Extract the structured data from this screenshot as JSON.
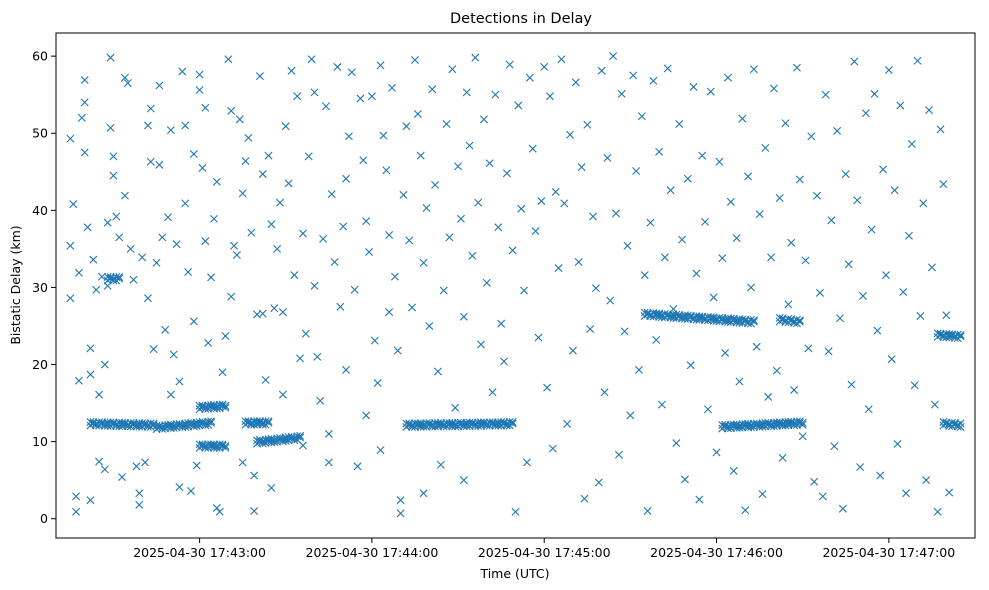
{
  "chart_data": {
    "type": "scatter",
    "title": "Detections in Delay",
    "xlabel": "Time (UTC)",
    "ylabel": "Bistatic Delay (km)",
    "x_unit": "UTC time (HH:MM:SS on 2025-04-30)",
    "xlim": [
      "2025-04-30 17:42:10",
      "2025-04-30 17:47:30"
    ],
    "ylim": [
      -2.5,
      63
    ],
    "x_ticks": [
      {
        "label": "2025-04-30 17:43:00",
        "value": "17:43:00"
      },
      {
        "label": "2025-04-30 17:44:00",
        "value": "17:44:00"
      },
      {
        "label": "2025-04-30 17:45:00",
        "value": "17:45:00"
      },
      {
        "label": "2025-04-30 17:46:00",
        "value": "17:46:00"
      },
      {
        "label": "2025-04-30 17:47:00",
        "value": "17:47:00"
      }
    ],
    "y_ticks": [
      0,
      10,
      20,
      30,
      40,
      50,
      60
    ],
    "marker": "x",
    "color": "#1f77b4",
    "grid": false,
    "legend": "none",
    "tracks": [
      {
        "x_start": "17:42:22",
        "x_end": "17:42:44",
        "y_start": 12.3,
        "y_end": 12.1
      },
      {
        "x_start": "17:42:45",
        "x_end": "17:43:04",
        "y_start": 11.8,
        "y_end": 12.4
      },
      {
        "x_start": "17:43:00",
        "x_end": "17:43:09",
        "y_start": 14.4,
        "y_end": 14.6
      },
      {
        "x_start": "17:43:00",
        "x_end": "17:43:09",
        "y_start": 9.4,
        "y_end": 9.4
      },
      {
        "x_start": "17:43:16",
        "x_end": "17:43:24",
        "y_start": 12.4,
        "y_end": 12.4
      },
      {
        "x_start": "17:43:20",
        "x_end": "17:43:35",
        "y_start": 9.9,
        "y_end": 10.5
      },
      {
        "x_start": "17:44:12",
        "x_end": "17:44:49",
        "y_start": 12.1,
        "y_end": 12.3
      },
      {
        "x_start": "17:45:35",
        "x_end": "17:46:13",
        "y_start": 26.5,
        "y_end": 25.5
      },
      {
        "x_start": "17:46:02",
        "x_end": "17:46:30",
        "y_start": 11.9,
        "y_end": 12.4
      },
      {
        "x_start": "17:47:19",
        "x_end": "17:47:25",
        "y_start": 12.3,
        "y_end": 12.1
      },
      {
        "x_start": "17:42:28",
        "x_end": "17:42:32",
        "y_start": 31.1,
        "y_end": 31.1
      },
      {
        "x_start": "17:46:22",
        "x_end": "17:46:29",
        "y_start": 25.8,
        "y_end": 25.5
      },
      {
        "x_start": "17:47:17",
        "x_end": "17:47:25",
        "y_start": 23.8,
        "y_end": 23.6
      }
    ],
    "scatter": [
      [
        "17:42:15",
        49.3
      ],
      [
        "17:42:15",
        35.4
      ],
      [
        "17:42:15",
        28.6
      ],
      [
        "17:42:16",
        40.8
      ],
      [
        "17:42:17",
        2.9
      ],
      [
        "17:42:17",
        0.9
      ],
      [
        "17:42:18",
        31.9
      ],
      [
        "17:42:18",
        17.9
      ],
      [
        "17:42:19",
        52.0
      ],
      [
        "17:42:20",
        56.9
      ],
      [
        "17:42:20",
        54.0
      ],
      [
        "17:42:20",
        47.5
      ],
      [
        "17:42:21",
        37.8
      ],
      [
        "17:42:22",
        22.1
      ],
      [
        "17:42:22",
        18.7
      ],
      [
        "17:42:22",
        2.4
      ],
      [
        "17:42:23",
        33.6
      ],
      [
        "17:42:24",
        29.7
      ],
      [
        "17:42:25",
        16.1
      ],
      [
        "17:42:25",
        7.4
      ],
      [
        "17:42:26",
        31.4
      ],
      [
        "17:42:27",
        20.0
      ],
      [
        "17:42:27",
        6.4
      ],
      [
        "17:42:28",
        30.2
      ],
      [
        "17:42:28",
        38.4
      ],
      [
        "17:42:29",
        59.8
      ],
      [
        "17:42:29",
        50.7
      ],
      [
        "17:42:30",
        44.5
      ],
      [
        "17:42:30",
        47.0
      ],
      [
        "17:42:31",
        39.2
      ],
      [
        "17:42:32",
        36.5
      ],
      [
        "17:42:33",
        5.4
      ],
      [
        "17:42:34",
        41.9
      ],
      [
        "17:42:34",
        57.2
      ],
      [
        "17:42:35",
        56.5
      ],
      [
        "17:42:36",
        35.0
      ],
      [
        "17:42:37",
        31.0
      ],
      [
        "17:42:38",
        6.8
      ],
      [
        "17:42:39",
        3.3
      ],
      [
        "17:42:39",
        1.8
      ],
      [
        "17:42:40",
        33.9
      ],
      [
        "17:42:41",
        7.3
      ],
      [
        "17:42:42",
        28.6
      ],
      [
        "17:42:42",
        51.0
      ],
      [
        "17:42:43",
        53.2
      ],
      [
        "17:42:43",
        46.3
      ],
      [
        "17:42:44",
        22.0
      ],
      [
        "17:42:45",
        33.2
      ],
      [
        "17:42:46",
        45.9
      ],
      [
        "17:42:46",
        56.2
      ],
      [
        "17:42:47",
        36.5
      ],
      [
        "17:42:48",
        24.5
      ],
      [
        "17:42:49",
        39.1
      ],
      [
        "17:42:50",
        50.4
      ],
      [
        "17:42:50",
        16.1
      ],
      [
        "17:42:51",
        21.3
      ],
      [
        "17:42:52",
        35.6
      ],
      [
        "17:42:53",
        17.8
      ],
      [
        "17:42:53",
        4.1
      ],
      [
        "17:42:54",
        58.0
      ],
      [
        "17:42:55",
        51.0
      ],
      [
        "17:42:55",
        40.9
      ],
      [
        "17:42:56",
        32.0
      ],
      [
        "17:42:57",
        3.6
      ],
      [
        "17:42:58",
        47.3
      ],
      [
        "17:42:58",
        25.6
      ],
      [
        "17:42:59",
        6.9
      ],
      [
        "17:43:00",
        55.6
      ],
      [
        "17:43:00",
        57.6
      ],
      [
        "17:43:01",
        45.5
      ],
      [
        "17:43:02",
        53.3
      ],
      [
        "17:43:02",
        36.0
      ],
      [
        "17:43:03",
        22.8
      ],
      [
        "17:43:04",
        31.3
      ],
      [
        "17:43:05",
        38.9
      ],
      [
        "17:43:06",
        43.7
      ],
      [
        "17:43:06",
        1.4
      ],
      [
        "17:43:07",
        0.9
      ],
      [
        "17:43:08",
        19.0
      ],
      [
        "17:43:09",
        23.7
      ],
      [
        "17:43:10",
        59.6
      ],
      [
        "17:43:11",
        52.9
      ],
      [
        "17:43:11",
        28.8
      ],
      [
        "17:43:12",
        35.4
      ],
      [
        "17:43:13",
        34.2
      ],
      [
        "17:43:14",
        51.8
      ],
      [
        "17:43:15",
        42.2
      ],
      [
        "17:43:15",
        7.3
      ],
      [
        "17:43:16",
        46.4
      ],
      [
        "17:43:17",
        49.4
      ],
      [
        "17:43:18",
        37.1
      ],
      [
        "17:43:19",
        5.6
      ],
      [
        "17:43:19",
        1.0
      ],
      [
        "17:43:20",
        26.5
      ],
      [
        "17:43:21",
        57.4
      ],
      [
        "17:43:22",
        44.7
      ],
      [
        "17:43:22",
        26.6
      ],
      [
        "17:43:23",
        18.0
      ],
      [
        "17:43:24",
        47.1
      ],
      [
        "17:43:25",
        38.2
      ],
      [
        "17:43:25",
        4.0
      ],
      [
        "17:43:26",
        27.3
      ],
      [
        "17:43:27",
        35.0
      ],
      [
        "17:43:28",
        41.0
      ],
      [
        "17:43:29",
        26.8
      ],
      [
        "17:43:29",
        16.1
      ],
      [
        "17:43:30",
        50.9
      ],
      [
        "17:43:31",
        43.5
      ],
      [
        "17:43:32",
        58.1
      ],
      [
        "17:43:33",
        31.6
      ],
      [
        "17:43:34",
        54.8
      ],
      [
        "17:43:35",
        20.8
      ],
      [
        "17:43:36",
        37.0
      ],
      [
        "17:43:36",
        9.5
      ],
      [
        "17:43:37",
        24.0
      ],
      [
        "17:43:38",
        47.0
      ],
      [
        "17:43:39",
        59.6
      ],
      [
        "17:43:40",
        55.3
      ],
      [
        "17:43:40",
        30.2
      ],
      [
        "17:43:41",
        21.0
      ],
      [
        "17:43:42",
        15.3
      ],
      [
        "17:43:43",
        36.3
      ],
      [
        "17:43:44",
        53.5
      ],
      [
        "17:43:45",
        11.0
      ],
      [
        "17:43:45",
        7.3
      ],
      [
        "17:43:46",
        42.1
      ],
      [
        "17:43:47",
        33.3
      ],
      [
        "17:43:48",
        58.6
      ],
      [
        "17:43:49",
        27.5
      ],
      [
        "17:43:50",
        37.9
      ],
      [
        "17:43:51",
        44.1
      ],
      [
        "17:43:51",
        19.3
      ],
      [
        "17:43:52",
        49.6
      ],
      [
        "17:43:53",
        57.9
      ],
      [
        "17:43:54",
        29.7
      ],
      [
        "17:43:55",
        6.8
      ],
      [
        "17:43:56",
        54.5
      ],
      [
        "17:43:57",
        46.5
      ],
      [
        "17:43:58",
        38.6
      ],
      [
        "17:43:58",
        13.4
      ],
      [
        "17:43:59",
        34.6
      ],
      [
        "17:44:00",
        54.8
      ],
      [
        "17:44:01",
        23.1
      ],
      [
        "17:44:02",
        17.6
      ],
      [
        "17:44:03",
        8.9
      ],
      [
        "17:44:03",
        58.8
      ],
      [
        "17:44:04",
        49.7
      ],
      [
        "17:44:05",
        45.2
      ],
      [
        "17:44:06",
        36.8
      ],
      [
        "17:44:06",
        26.8
      ],
      [
        "17:44:07",
        55.9
      ],
      [
        "17:44:08",
        31.4
      ],
      [
        "17:44:09",
        21.8
      ],
      [
        "17:44:10",
        0.7
      ],
      [
        "17:44:10",
        2.4
      ],
      [
        "17:44:11",
        42.0
      ],
      [
        "17:44:12",
        50.9
      ],
      [
        "17:44:13",
        36.1
      ],
      [
        "17:44:14",
        27.4
      ],
      [
        "17:44:15",
        59.5
      ],
      [
        "17:44:16",
        52.5
      ],
      [
        "17:44:17",
        47.1
      ],
      [
        "17:44:18",
        33.2
      ],
      [
        "17:44:18",
        3.3
      ],
      [
        "17:44:19",
        40.3
      ],
      [
        "17:44:20",
        25.0
      ],
      [
        "17:44:21",
        55.7
      ],
      [
        "17:44:22",
        43.3
      ],
      [
        "17:44:23",
        19.1
      ],
      [
        "17:44:24",
        7.0
      ],
      [
        "17:44:25",
        29.6
      ],
      [
        "17:44:26",
        51.2
      ],
      [
        "17:44:27",
        36.5
      ],
      [
        "17:44:28",
        58.3
      ],
      [
        "17:44:29",
        14.4
      ],
      [
        "17:44:30",
        45.7
      ],
      [
        "17:44:31",
        38.9
      ],
      [
        "17:44:32",
        26.2
      ],
      [
        "17:44:32",
        5.0
      ],
      [
        "17:44:33",
        55.3
      ],
      [
        "17:44:34",
        48.4
      ],
      [
        "17:44:35",
        34.1
      ],
      [
        "17:44:36",
        59.8
      ],
      [
        "17:44:37",
        41.0
      ],
      [
        "17:44:38",
        22.6
      ],
      [
        "17:44:39",
        51.8
      ],
      [
        "17:44:40",
        30.6
      ],
      [
        "17:44:41",
        46.1
      ],
      [
        "17:44:42",
        16.4
      ],
      [
        "17:44:43",
        55.0
      ],
      [
        "17:44:44",
        37.8
      ],
      [
        "17:44:45",
        25.3
      ],
      [
        "17:44:46",
        20.4
      ],
      [
        "17:44:47",
        44.8
      ],
      [
        "17:44:48",
        58.9
      ],
      [
        "17:44:49",
        34.8
      ],
      [
        "17:44:50",
        0.9
      ],
      [
        "17:44:51",
        53.6
      ],
      [
        "17:44:52",
        40.2
      ],
      [
        "17:44:53",
        29.6
      ],
      [
        "17:44:54",
        7.3
      ],
      [
        "17:44:55",
        57.2
      ],
      [
        "17:44:56",
        48.0
      ],
      [
        "17:44:57",
        37.3
      ],
      [
        "17:44:58",
        23.5
      ],
      [
        "17:44:59",
        41.2
      ],
      [
        "17:45:00",
        58.6
      ],
      [
        "17:45:01",
        17.0
      ],
      [
        "17:45:02",
        54.8
      ],
      [
        "17:45:03",
        9.1
      ],
      [
        "17:45:04",
        42.4
      ],
      [
        "17:45:05",
        32.5
      ],
      [
        "17:45:06",
        59.6
      ],
      [
        "17:45:07",
        40.9
      ],
      [
        "17:45:08",
        12.3
      ],
      [
        "17:45:09",
        49.8
      ],
      [
        "17:45:10",
        21.8
      ],
      [
        "17:45:11",
        56.6
      ],
      [
        "17:45:12",
        33.3
      ],
      [
        "17:45:13",
        45.6
      ],
      [
        "17:45:14",
        2.6
      ],
      [
        "17:45:15",
        51.1
      ],
      [
        "17:45:16",
        24.6
      ],
      [
        "17:45:17",
        39.2
      ],
      [
        "17:45:18",
        29.9
      ],
      [
        "17:45:19",
        4.7
      ],
      [
        "17:45:20",
        58.1
      ],
      [
        "17:45:21",
        16.4
      ],
      [
        "17:45:22",
        46.8
      ],
      [
        "17:45:23",
        28.3
      ],
      [
        "17:45:24",
        60.0
      ],
      [
        "17:45:25",
        39.6
      ],
      [
        "17:45:26",
        8.3
      ],
      [
        "17:45:27",
        55.1
      ],
      [
        "17:45:28",
        24.3
      ],
      [
        "17:45:29",
        35.4
      ],
      [
        "17:45:30",
        13.4
      ],
      [
        "17:45:31",
        57.5
      ],
      [
        "17:45:32",
        45.1
      ],
      [
        "17:45:33",
        19.3
      ],
      [
        "17:45:34",
        52.2
      ],
      [
        "17:45:35",
        31.6
      ],
      [
        "17:45:36",
        1.0
      ],
      [
        "17:45:37",
        38.4
      ],
      [
        "17:45:38",
        56.8
      ],
      [
        "17:45:39",
        23.2
      ],
      [
        "17:45:40",
        47.6
      ],
      [
        "17:45:41",
        14.8
      ],
      [
        "17:45:42",
        33.9
      ],
      [
        "17:45:43",
        58.4
      ],
      [
        "17:45:44",
        42.6
      ],
      [
        "17:45:45",
        27.2
      ],
      [
        "17:45:46",
        9.8
      ],
      [
        "17:45:47",
        51.2
      ],
      [
        "17:45:48",
        36.2
      ],
      [
        "17:45:49",
        5.1
      ],
      [
        "17:45:50",
        44.1
      ],
      [
        "17:45:51",
        19.9
      ],
      [
        "17:45:52",
        56.0
      ],
      [
        "17:45:53",
        31.8
      ],
      [
        "17:45:54",
        2.5
      ],
      [
        "17:45:55",
        47.1
      ],
      [
        "17:45:56",
        38.5
      ],
      [
        "17:45:57",
        14.2
      ],
      [
        "17:45:58",
        55.4
      ],
      [
        "17:45:59",
        28.7
      ],
      [
        "17:46:00",
        8.6
      ],
      [
        "17:46:01",
        46.3
      ],
      [
        "17:46:02",
        33.8
      ],
      [
        "17:46:03",
        21.5
      ],
      [
        "17:46:04",
        57.2
      ],
      [
        "17:46:05",
        41.1
      ],
      [
        "17:46:06",
        6.2
      ],
      [
        "17:46:07",
        36.4
      ],
      [
        "17:46:08",
        17.8
      ],
      [
        "17:46:09",
        51.9
      ],
      [
        "17:46:10",
        1.1
      ],
      [
        "17:46:11",
        44.4
      ],
      [
        "17:46:12",
        30.0
      ],
      [
        "17:46:13",
        58.3
      ],
      [
        "17:46:14",
        22.3
      ],
      [
        "17:46:15",
        39.5
      ],
      [
        "17:46:16",
        3.2
      ],
      [
        "17:46:17",
        48.1
      ],
      [
        "17:46:18",
        15.8
      ],
      [
        "17:46:19",
        33.9
      ],
      [
        "17:46:20",
        55.8
      ],
      [
        "17:46:21",
        19.2
      ],
      [
        "17:46:22",
        41.6
      ],
      [
        "17:46:23",
        7.9
      ],
      [
        "17:46:24",
        51.3
      ],
      [
        "17:46:25",
        27.8
      ],
      [
        "17:46:26",
        35.8
      ],
      [
        "17:46:27",
        16.7
      ],
      [
        "17:46:28",
        58.5
      ],
      [
        "17:46:29",
        44.0
      ],
      [
        "17:46:30",
        10.7
      ],
      [
        "17:46:31",
        33.5
      ],
      [
        "17:46:32",
        22.1
      ],
      [
        "17:46:33",
        49.6
      ],
      [
        "17:46:34",
        4.8
      ],
      [
        "17:46:35",
        41.9
      ],
      [
        "17:46:36",
        29.3
      ],
      [
        "17:46:37",
        2.9
      ],
      [
        "17:46:38",
        55.0
      ],
      [
        "17:46:39",
        21.7
      ],
      [
        "17:46:40",
        38.7
      ],
      [
        "17:46:41",
        9.4
      ],
      [
        "17:46:42",
        50.3
      ],
      [
        "17:46:43",
        26.0
      ],
      [
        "17:46:44",
        1.3
      ],
      [
        "17:46:45",
        44.7
      ],
      [
        "17:46:46",
        33.0
      ],
      [
        "17:46:47",
        17.4
      ],
      [
        "17:46:48",
        59.3
      ],
      [
        "17:46:49",
        41.3
      ],
      [
        "17:46:50",
        6.7
      ],
      [
        "17:46:51",
        28.9
      ],
      [
        "17:46:52",
        52.6
      ],
      [
        "17:46:53",
        14.2
      ],
      [
        "17:46:54",
        37.5
      ],
      [
        "17:46:55",
        55.1
      ],
      [
        "17:46:56",
        24.4
      ],
      [
        "17:46:57",
        5.6
      ],
      [
        "17:46:58",
        45.3
      ],
      [
        "17:46:59",
        31.6
      ],
      [
        "17:47:00",
        58.2
      ],
      [
        "17:47:01",
        20.7
      ],
      [
        "17:47:02",
        42.6
      ],
      [
        "17:47:03",
        9.7
      ],
      [
        "17:47:04",
        53.6
      ],
      [
        "17:47:05",
        29.4
      ],
      [
        "17:47:06",
        3.3
      ],
      [
        "17:47:07",
        36.7
      ],
      [
        "17:47:08",
        48.6
      ],
      [
        "17:47:09",
        17.3
      ],
      [
        "17:47:10",
        59.4
      ],
      [
        "17:47:11",
        26.3
      ],
      [
        "17:47:12",
        40.9
      ],
      [
        "17:47:13",
        5.0
      ],
      [
        "17:47:14",
        53.0
      ],
      [
        "17:47:15",
        32.6
      ],
      [
        "17:47:16",
        14.8
      ],
      [
        "17:47:17",
        0.9
      ],
      [
        "17:47:18",
        50.5
      ],
      [
        "17:47:19",
        43.4
      ],
      [
        "17:47:20",
        26.4
      ],
      [
        "17:47:21",
        3.4
      ]
    ]
  }
}
